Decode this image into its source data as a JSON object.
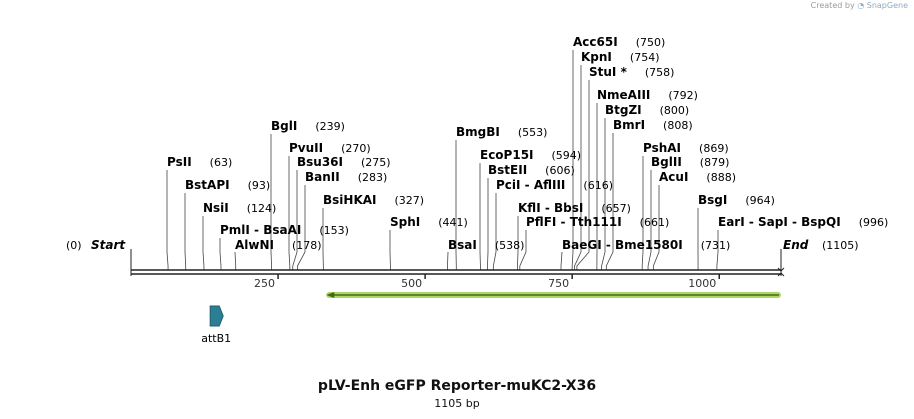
{
  "watermark": {
    "prefix": "Created by",
    "brand": "SnapGene"
  },
  "title": "pLV-Enh eGFP Reporter-muKC2-X36",
  "length_label": "1105 bp",
  "sequence_length": 1105,
  "ends": {
    "start_pos": "(0)",
    "start_label": "Start",
    "end_label": "End",
    "end_pos": "(1105)"
  },
  "ticks": [
    250,
    500,
    750,
    1000
  ],
  "colors": {
    "backbone": "#222222",
    "feature": "#2a7f95",
    "feature_stroke": "#1f5f70",
    "orf": "#a6d05a",
    "orf_line": "#3b6e10"
  },
  "features": [
    {
      "name": "attB1",
      "start": 70,
      "end": 95,
      "direction": "forward"
    }
  ],
  "orf": {
    "start": 332,
    "end": 1105,
    "direction": "reverse"
  },
  "sites": [
    {
      "label": "PsII",
      "pos": "(63)",
      "cut": 63
    },
    {
      "label": "BstAPI",
      "pos": "(93)",
      "cut": 93
    },
    {
      "label": "NsiI",
      "pos": "(124)",
      "cut": 124
    },
    {
      "label": "PmlI - BsaAI",
      "pos": "(153)",
      "cut": 153
    },
    {
      "label": "AlwNI",
      "pos": "(178)",
      "cut": 178
    },
    {
      "label": "BglI",
      "pos": "(239)",
      "cut": 239
    },
    {
      "label": "PvuII",
      "pos": "(270)",
      "cut": 270
    },
    {
      "label": "Bsu36I",
      "pos": "(275)",
      "cut": 275
    },
    {
      "label": "BanII",
      "pos": "(283)",
      "cut": 283
    },
    {
      "label": "BsiHKAI",
      "pos": "(327)",
      "cut": 327
    },
    {
      "label": "SphI",
      "pos": "(441)",
      "cut": 441
    },
    {
      "label": "BsaI",
      "pos": "(538)",
      "cut": 538
    },
    {
      "label": "BmgBI",
      "pos": "(553)",
      "cut": 553
    },
    {
      "label": "EcoP15I",
      "pos": "(594)",
      "cut": 594
    },
    {
      "label": "BstEII",
      "pos": "(606)",
      "cut": 606
    },
    {
      "label": "PciI - AflIII",
      "pos": "(616)",
      "cut": 616
    },
    {
      "label": "KflI - BbsI",
      "pos": "(657)",
      "cut": 657
    },
    {
      "label": "PflFI - Tth111I",
      "pos": "(661)",
      "cut": 661
    },
    {
      "label": "BaeGI - Bme1580I",
      "pos": "(731)",
      "cut": 731
    },
    {
      "label": "Acc65I",
      "pos": "(750)",
      "cut": 750
    },
    {
      "label": "KpnI",
      "pos": "(754)",
      "cut": 754
    },
    {
      "label": "StuI *",
      "pos": "(758)",
      "cut": 758
    },
    {
      "label": "NmeAIII",
      "pos": "(792)",
      "cut": 792
    },
    {
      "label": "BtgZI",
      "pos": "(800)",
      "cut": 800
    },
    {
      "label": "BmrI",
      "pos": "(808)",
      "cut": 808
    },
    {
      "label": "PshAI",
      "pos": "(869)",
      "cut": 869
    },
    {
      "label": "BglII",
      "pos": "(879)",
      "cut": 879
    },
    {
      "label": "AcuI",
      "pos": "(888)",
      "cut": 888
    },
    {
      "label": "BsgI",
      "pos": "(964)",
      "cut": 964
    },
    {
      "label": "EarI - SapI - BspQI",
      "pos": "(996)",
      "cut": 996
    }
  ]
}
